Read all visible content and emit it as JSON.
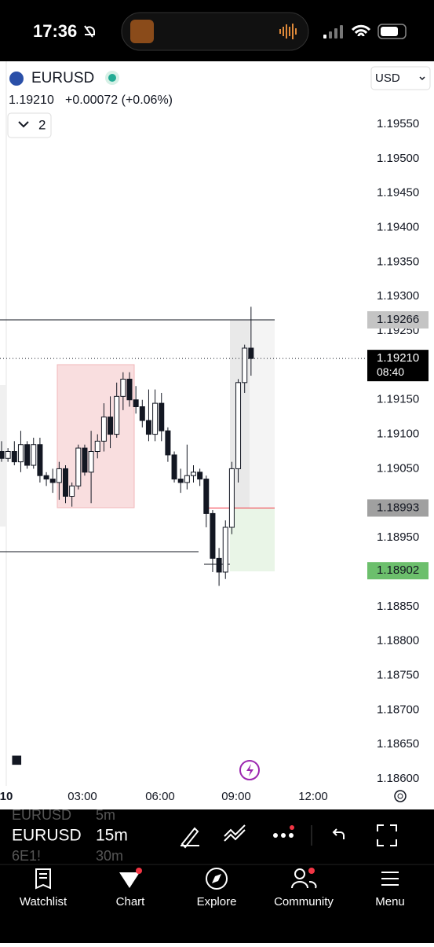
{
  "status_bar": {
    "time": "17:36"
  },
  "header": {
    "symbol": "EURUSD",
    "currency": "USD",
    "price": "1.19210",
    "change": "+0.00072 (+0.06%)",
    "indicator_count": "2"
  },
  "chart": {
    "price_ticks": [
      {
        "value": 1.1955,
        "label": "1.19550"
      },
      {
        "value": 1.195,
        "label": "1.19500"
      },
      {
        "value": 1.1945,
        "label": "1.19450"
      },
      {
        "value": 1.194,
        "label": "1.19400"
      },
      {
        "value": 1.1935,
        "label": "1.19350"
      },
      {
        "value": 1.193,
        "label": "1.19300"
      },
      {
        "value": 1.1925,
        "label": "1.19250"
      },
      {
        "value": 1.1915,
        "label": "1.19150"
      },
      {
        "value": 1.191,
        "label": "1.19100"
      },
      {
        "value": 1.1905,
        "label": "1.19050"
      },
      {
        "value": 1.1895,
        "label": "1.18950"
      },
      {
        "value": 1.1885,
        "label": "1.18850"
      },
      {
        "value": 1.188,
        "label": "1.18800"
      },
      {
        "value": 1.1875,
        "label": "1.18750"
      },
      {
        "value": 1.187,
        "label": "1.18700"
      },
      {
        "value": 1.1865,
        "label": "1.18650"
      },
      {
        "value": 1.186,
        "label": "1.18600"
      }
    ],
    "time_labels": [
      "10",
      "03:00",
      "06:00",
      "09:00",
      "12:00"
    ],
    "levels": [
      {
        "value": 1.19266,
        "label": "1.19266"
      },
      {
        "value": 1.1921,
        "label": "1.19210",
        "countdown": "08:40"
      },
      {
        "value": 1.18993,
        "label": "1.18993"
      },
      {
        "value": 1.18902,
        "label": "1.18902"
      }
    ],
    "candles": [
      {
        "open": 1.19075,
        "high": 1.1909,
        "low": 1.1906,
        "close": 1.19065
      },
      {
        "open": 1.19065,
        "high": 1.1908,
        "low": 1.1906,
        "close": 1.19075
      },
      {
        "open": 1.19075,
        "high": 1.1909,
        "low": 1.19055,
        "close": 1.1906
      },
      {
        "open": 1.1906,
        "high": 1.19105,
        "low": 1.19045,
        "close": 1.19085
      },
      {
        "open": 1.19085,
        "high": 1.1909,
        "low": 1.1905,
        "close": 1.19055
      },
      {
        "open": 1.19055,
        "high": 1.19095,
        "low": 1.1905,
        "close": 1.19085
      },
      {
        "open": 1.19085,
        "high": 1.19095,
        "low": 1.1903,
        "close": 1.1904
      },
      {
        "open": 1.1904,
        "high": 1.19045,
        "low": 1.19025,
        "close": 1.19035
      },
      {
        "open": 1.19035,
        "high": 1.1905,
        "low": 1.19015,
        "close": 1.1903
      },
      {
        "open": 1.1903,
        "high": 1.1906,
        "low": 1.19005,
        "close": 1.1905
      },
      {
        "open": 1.1905,
        "high": 1.19055,
        "low": 1.19,
        "close": 1.1901
      },
      {
        "open": 1.1901,
        "high": 1.1903,
        "low": 1.18995,
        "close": 1.19025
      },
      {
        "open": 1.19025,
        "high": 1.19085,
        "low": 1.1902,
        "close": 1.1908
      },
      {
        "open": 1.1908,
        "high": 1.19085,
        "low": 1.1904,
        "close": 1.19045
      },
      {
        "open": 1.19045,
        "high": 1.19105,
        "low": 1.19,
        "close": 1.19075
      },
      {
        "open": 1.19075,
        "high": 1.191,
        "low": 1.19065,
        "close": 1.1909
      },
      {
        "open": 1.1909,
        "high": 1.19145,
        "low": 1.19075,
        "close": 1.19125
      },
      {
        "open": 1.19125,
        "high": 1.19155,
        "low": 1.1908,
        "close": 1.191
      },
      {
        "open": 1.191,
        "high": 1.19175,
        "low": 1.19095,
        "close": 1.19155
      },
      {
        "open": 1.19155,
        "high": 1.1919,
        "low": 1.19135,
        "close": 1.1918
      },
      {
        "open": 1.1918,
        "high": 1.1919,
        "low": 1.1914,
        "close": 1.1915
      },
      {
        "open": 1.1915,
        "high": 1.1917,
        "low": 1.1913,
        "close": 1.1914
      },
      {
        "open": 1.1914,
        "high": 1.1915,
        "low": 1.1911,
        "close": 1.1912
      },
      {
        "open": 1.1912,
        "high": 1.19165,
        "low": 1.1909,
        "close": 1.191
      },
      {
        "open": 1.191,
        "high": 1.19165,
        "low": 1.1909,
        "close": 1.19145
      },
      {
        "open": 1.19145,
        "high": 1.1916,
        "low": 1.1909,
        "close": 1.19105
      },
      {
        "open": 1.19105,
        "high": 1.1911,
        "low": 1.1906,
        "close": 1.1907
      },
      {
        "open": 1.1907,
        "high": 1.19075,
        "low": 1.1903,
        "close": 1.19035
      },
      {
        "open": 1.19035,
        "high": 1.1905,
        "low": 1.19015,
        "close": 1.1903
      },
      {
        "open": 1.1903,
        "high": 1.19085,
        "low": 1.1902,
        "close": 1.1904
      },
      {
        "open": 1.1904,
        "high": 1.19055,
        "low": 1.1903,
        "close": 1.19045
      },
      {
        "open": 1.19045,
        "high": 1.1905,
        "low": 1.19025,
        "close": 1.19035
      },
      {
        "open": 1.19035,
        "high": 1.1904,
        "low": 1.18965,
        "close": 1.18985
      },
      {
        "open": 1.18985,
        "high": 1.1899,
        "low": 1.189,
        "close": 1.1892
      },
      {
        "open": 1.1892,
        "high": 1.18935,
        "low": 1.1888,
        "close": 1.189
      },
      {
        "open": 1.189,
        "high": 1.18975,
        "low": 1.1889,
        "close": 1.18965
      },
      {
        "open": 1.18965,
        "high": 1.1906,
        "low": 1.18955,
        "close": 1.1905
      },
      {
        "open": 1.1905,
        "high": 1.1918,
        "low": 1.1903,
        "close": 1.19175
      },
      {
        "open": 1.19175,
        "high": 1.1923,
        "low": 1.1916,
        "close": 1.19225
      },
      {
        "open": 1.19225,
        "high": 1.19285,
        "low": 1.19185,
        "close": 1.1921
      }
    ]
  },
  "toolbar": {
    "symbol": "EURUSD",
    "interval": "15m",
    "ghost_symbol_above": "EURUSD",
    "ghost_interval_above": "5m",
    "ghost_symbol_below": "6E1!",
    "ghost_interval_below": "30m"
  },
  "tabs": [
    "Watchlist",
    "Chart",
    "Explore",
    "Community",
    "Menu"
  ]
}
